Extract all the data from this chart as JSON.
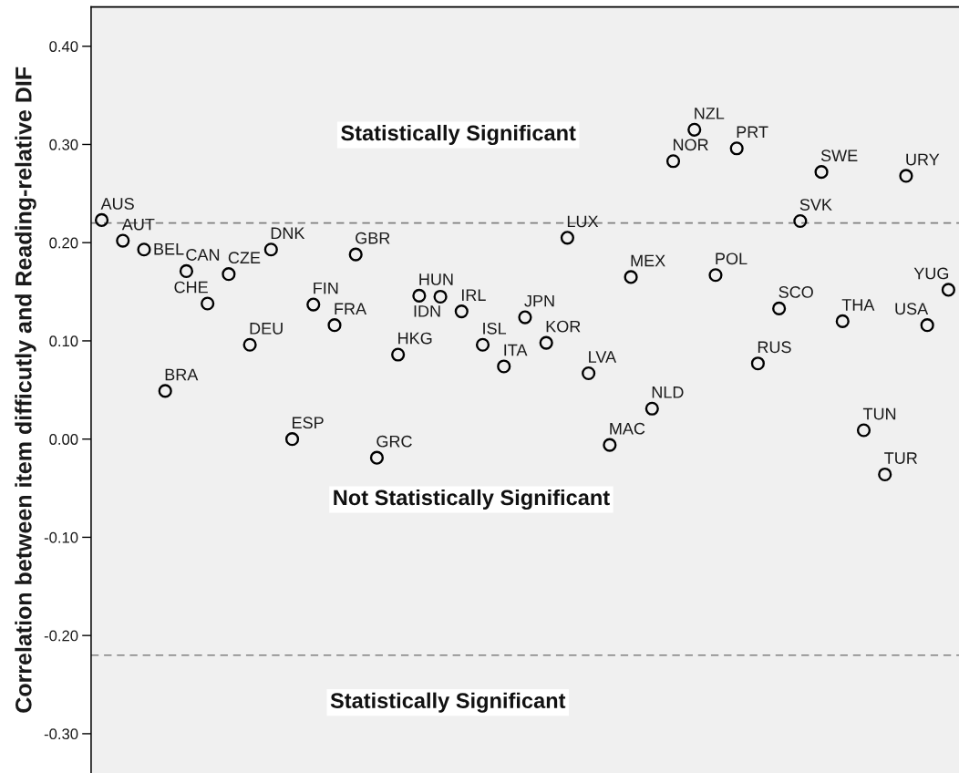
{
  "chart_data": {
    "type": "scatter",
    "ylabel": "Correlation between item difficutly and Reading-relative DIF",
    "categories": [
      null,
      null,
      null,
      null,
      null,
      null,
      null,
      null,
      null,
      null,
      null,
      null,
      null,
      null,
      null,
      null,
      null,
      null,
      null,
      null,
      null,
      null,
      null,
      null,
      null,
      null,
      null,
      null,
      null,
      null,
      null,
      null,
      null,
      null,
      null,
      null,
      null,
      null,
      null,
      null,
      null
    ],
    "series": [
      {
        "color": "#000000",
        "values": [
          0.223,
          0.202,
          0.193,
          0.049,
          0.171,
          0.138,
          0.168,
          0.096,
          0.193,
          0.0,
          0.137,
          0.116,
          0.188,
          -0.019,
          0.086,
          0.146,
          0.145,
          0.13,
          0.096,
          0.074,
          0.124,
          0.098,
          0.205,
          0.067,
          -0.006,
          0.165,
          0.031,
          0.283,
          0.315,
          0.167,
          0.296,
          0.077,
          0.133,
          0.222,
          0.272,
          0.12,
          0.009,
          -0.036,
          0.268,
          0.116,
          0.152
        ],
        "value_labels": [
          "AUS",
          "AUT",
          "BEL",
          "BRA",
          "CAN",
          "CHE",
          "CZE",
          "DEU",
          "DNK",
          "ESP",
          "FIN",
          "FRA",
          "GBR",
          "GRC",
          "HKG",
          "HUN",
          "IDN",
          "IRL",
          "ISL",
          "ITA",
          "JPN",
          "KOR",
          "LUX",
          "LVA",
          "MAC",
          "MEX",
          "NLD",
          "NOR",
          "NZL",
          "POL",
          "PRT",
          "RUS",
          "SCO",
          "SVK",
          "SWE",
          "THA",
          "TUN",
          "TUR",
          "URY",
          "USA",
          "YUG"
        ]
      }
    ],
    "marker": "circle",
    "ylim": [
      -0.34,
      0.44
    ],
    "yticks": [
      {
        "value": -0.3,
        "label": "-0.30"
      },
      {
        "value": -0.2,
        "label": "-0.20"
      },
      {
        "value": -0.1,
        "label": "-0.10"
      },
      {
        "value": 0,
        "label": "0.00"
      },
      {
        "value": 0.1,
        "label": "0.10"
      },
      {
        "value": 0.2,
        "label": "0.20"
      },
      {
        "value": 0.3,
        "label": "0.30"
      },
      {
        "value": 0.4,
        "label": "0.40"
      }
    ],
    "tick_labels": "y",
    "ref_lines": [
      {
        "axis": "y",
        "value": 0.22,
        "line_style": "dashed",
        "color": "#808080"
      },
      {
        "axis": "y",
        "value": -0.22,
        "line_style": "dashed",
        "color": "#808080"
      }
    ],
    "annotations": [
      "Statistically Significant",
      "Not Statistically Significant",
      "Statistically Significant"
    ]
  }
}
